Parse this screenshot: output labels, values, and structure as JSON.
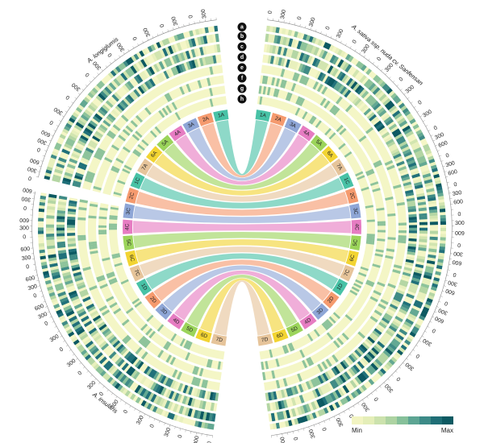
{
  "genomes": [
    {
      "name": "A. longiglumis"
    },
    {
      "name": "A. sativa ssp. nuda cv. Sanfensan"
    },
    {
      "name": "A. insularis"
    }
  ],
  "chromosomes_left": [
    "1A",
    "2A",
    "3A",
    "4A",
    "5A",
    "6A",
    "7A",
    "1C",
    "2C",
    "3C",
    "4C",
    "5C",
    "6C",
    "7C",
    "1D",
    "2D",
    "3D",
    "4D",
    "5D",
    "6D",
    "7D"
  ],
  "chromosomes_right": [
    "1A",
    "2A",
    "3A",
    "4A",
    "5A",
    "6A",
    "7A",
    "1C",
    "2C",
    "3C",
    "4C",
    "5C",
    "6C",
    "7C",
    "1D",
    "2D",
    "3D",
    "4D",
    "5D",
    "6D",
    "7D"
  ],
  "chromosome_colors": {
    "1": "#48c2a6",
    "2": "#f59a6e",
    "3": "#8ea6d6",
    "4": "#e67cc2",
    "5": "#9bd45a",
    "6": "#f2d432",
    "7": "#e6c49a"
  },
  "track_letters": [
    "a",
    "b",
    "c",
    "d",
    "e",
    "f",
    "g",
    "h"
  ],
  "tick_labels": [
    "0",
    "300",
    "600"
  ],
  "legend": {
    "min_label": "Min",
    "max_label": "Max",
    "colors": [
      "#f2f4c2",
      "#e4eeb8",
      "#cce2ad",
      "#add3a2",
      "#86c09a",
      "#5da593",
      "#3c8a87",
      "#1f6e76",
      "#0d5a62"
    ]
  },
  "heat_palette": [
    "#f4f6c6",
    "#e8f0bd",
    "#d2e5b0",
    "#b4d6a4",
    "#8dc39b",
    "#63a893",
    "#3f8b86",
    "#20707a",
    "#0c5962"
  ]
}
